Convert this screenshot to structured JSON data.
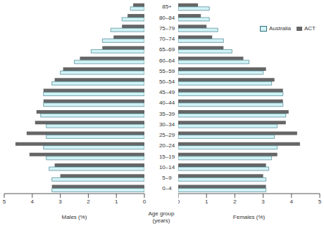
{
  "chart_data": [
    {
      "type": "bar",
      "orientation": "horizontal",
      "x_label": "Males (%)",
      "y_label": "Age group (years)",
      "xlim": [
        5,
        0
      ],
      "xticks": [
        0,
        1,
        2,
        3,
        4,
        5
      ],
      "categories": [
        "0–4",
        "5–9",
        "10–14",
        "15–19",
        "20–24",
        "25–29",
        "30–34",
        "35–39",
        "40–44",
        "45–49",
        "50–54",
        "55–59",
        "60–64",
        "65–69",
        "70–74",
        "75–79",
        "80–84",
        "85+"
      ],
      "series": [
        {
          "name": "Australia",
          "color": "#d2f3f6",
          "values": [
            3.3,
            3.3,
            3.4,
            3.5,
            3.6,
            3.5,
            3.5,
            3.7,
            3.6,
            3.6,
            3.3,
            3.0,
            2.5,
            1.9,
            1.5,
            1.2,
            0.8,
            0.5
          ]
        },
        {
          "name": "ACT",
          "color": "#666666",
          "values": [
            3.3,
            3.0,
            3.2,
            4.1,
            4.6,
            4.2,
            3.9,
            3.85,
            3.6,
            3.6,
            3.2,
            2.9,
            2.3,
            1.5,
            1.1,
            0.8,
            0.6,
            0.4
          ]
        }
      ]
    },
    {
      "type": "bar",
      "orientation": "horizontal",
      "x_label": "Females (%)",
      "legend": "upper right",
      "xlim": [
        0,
        5
      ],
      "xticks": [
        0,
        1,
        2,
        3,
        4,
        5
      ],
      "categories": [
        "0–4",
        "5–9",
        "10–14",
        "15–19",
        "20–24",
        "25–29",
        "30–34",
        "35–39",
        "40–44",
        "45–49",
        "50–54",
        "55–59",
        "60–64",
        "65–69",
        "70–74",
        "75–79",
        "80–84",
        "85+"
      ],
      "series": [
        {
          "name": "Australia",
          "color": "#d2f3f6",
          "values": [
            3.1,
            3.1,
            3.2,
            3.3,
            3.5,
            3.4,
            3.5,
            3.8,
            3.7,
            3.7,
            3.3,
            3.0,
            2.5,
            1.9,
            1.6,
            1.4,
            1.1,
            1.1
          ]
        },
        {
          "name": "ACT",
          "color": "#666666",
          "values": [
            3.1,
            3.0,
            3.1,
            3.5,
            4.3,
            4.2,
            3.8,
            3.9,
            3.7,
            3.7,
            3.4,
            3.1,
            2.3,
            1.6,
            1.2,
            1.0,
            0.8,
            0.7
          ]
        }
      ]
    }
  ]
}
